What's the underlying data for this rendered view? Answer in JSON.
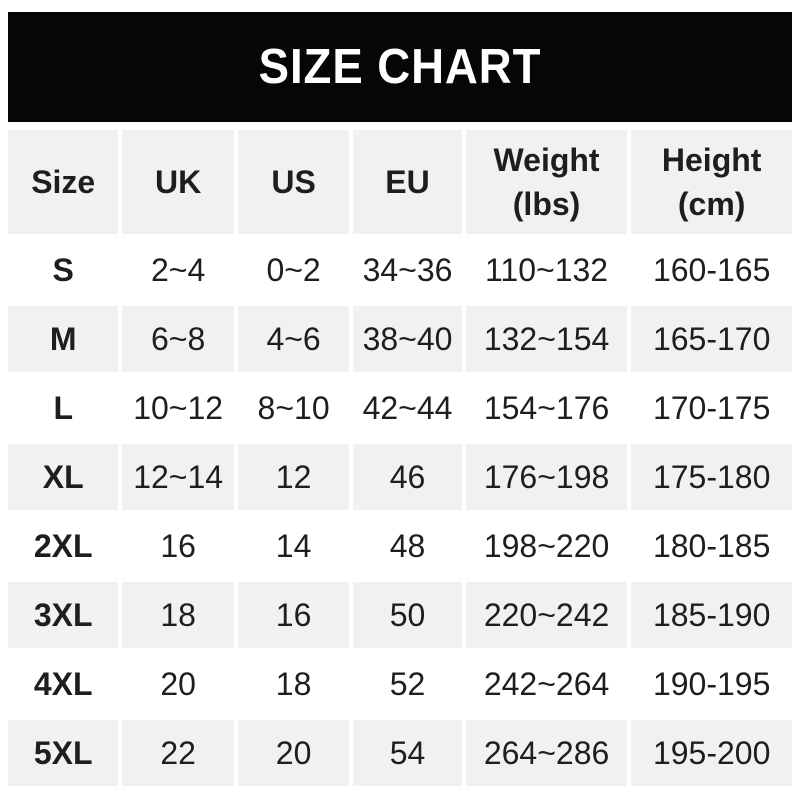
{
  "banner": {
    "title": "SIZE CHART"
  },
  "table": {
    "columns": {
      "size": "Size",
      "uk": "UK",
      "us": "US",
      "eu": "EU",
      "weight": "Weight\n(lbs)",
      "height": "Height\n(cm)"
    },
    "rows": [
      {
        "size": "S",
        "uk": "2~4",
        "us": "0~2",
        "eu": "34~36",
        "weight": "110~132",
        "height": "160-165"
      },
      {
        "size": "M",
        "uk": "6~8",
        "us": "4~6",
        "eu": "38~40",
        "weight": "132~154",
        "height": "165-170"
      },
      {
        "size": "L",
        "uk": "10~12",
        "us": "8~10",
        "eu": "42~44",
        "weight": "154~176",
        "height": "170-175"
      },
      {
        "size": "XL",
        "uk": "12~14",
        "us": "12",
        "eu": "46",
        "weight": "176~198",
        "height": "175-180"
      },
      {
        "size": "2XL",
        "uk": "16",
        "us": "14",
        "eu": "48",
        "weight": "198~220",
        "height": "180-185"
      },
      {
        "size": "3XL",
        "uk": "18",
        "us": "16",
        "eu": "50",
        "weight": "220~242",
        "height": "185-190"
      },
      {
        "size": "4XL",
        "uk": "20",
        "us": "18",
        "eu": "52",
        "weight": "242~264",
        "height": "190-195"
      },
      {
        "size": "5XL",
        "uk": "22",
        "us": "20",
        "eu": "54",
        "weight": "264~286",
        "height": "195-200"
      }
    ]
  },
  "colors": {
    "banner_bg": "#060606",
    "banner_text": "#ffffff",
    "row_alt_bg": "#f1f1f2",
    "text": "#1e1e20"
  }
}
